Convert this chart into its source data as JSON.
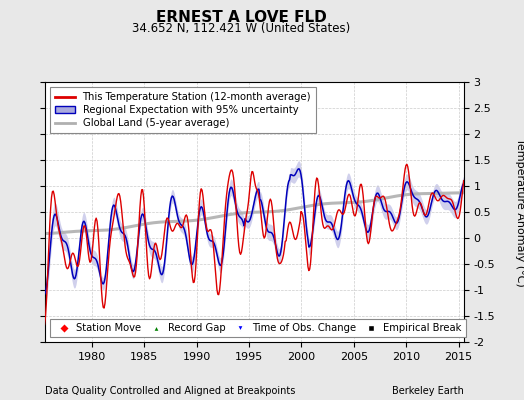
{
  "title": "ERNEST A LOVE FLD",
  "subtitle": "34.652 N, 112.421 W (United States)",
  "xlabel_bottom": "Data Quality Controlled and Aligned at Breakpoints",
  "xlabel_right": "Berkeley Earth",
  "ylabel": "Temperature Anomaly (°C)",
  "xmin": 1975.5,
  "xmax": 2015.5,
  "ymin": -2,
  "ymax": 3,
  "yticks": [
    -2,
    -1.5,
    -1,
    -0.5,
    0,
    0.5,
    1,
    1.5,
    2,
    2.5,
    3
  ],
  "xticks": [
    1980,
    1985,
    1990,
    1995,
    2000,
    2005,
    2010,
    2015
  ],
  "background_color": "#e8e8e8",
  "plot_bg_color": "#ffffff",
  "red_color": "#dd0000",
  "blue_color": "#0000bb",
  "blue_fill_color": "#aaaadd",
  "gray_color": "#b0b0b0",
  "seed": 17
}
